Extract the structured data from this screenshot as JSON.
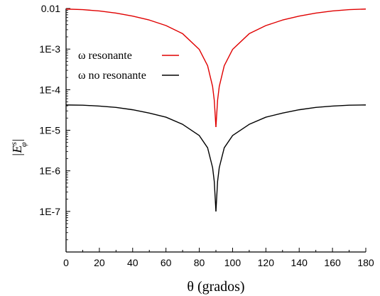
{
  "chart_data": {
    "type": "line",
    "xlabel": "θ (grados)",
    "ylabel": "|E",
    "ylabel_sup": "s",
    "ylabel_sub": "φ",
    "ylabel_close": "|",
    "y_scale": "log",
    "xlim": [
      0,
      180
    ],
    "ylim": [
      1e-08,
      0.01
    ],
    "x_ticks": [
      "0",
      "20",
      "40",
      "60",
      "80",
      "100",
      "120",
      "140",
      "160",
      "180"
    ],
    "y_ticks": [
      "0.01",
      "1E-3",
      "1E-4",
      "1E-5",
      "1E-6",
      "1E-7"
    ],
    "x_tick_values": [
      0,
      20,
      40,
      60,
      80,
      100,
      120,
      140,
      160,
      180
    ],
    "y_tick_values": [
      0.01,
      0.001,
      0.0001,
      1e-05,
      1e-06,
      1e-07
    ],
    "grid": false,
    "legend_position": "upper-left",
    "series": [
      {
        "name": "ω resonante",
        "color": "#e00000",
        "points": [
          [
            0,
            0.0097
          ],
          [
            10,
            0.0094
          ],
          [
            20,
            0.0087
          ],
          [
            30,
            0.0077
          ],
          [
            40,
            0.0065
          ],
          [
            50,
            0.0052
          ],
          [
            60,
            0.0038
          ],
          [
            70,
            0.0024
          ],
          [
            80,
            0.00098
          ],
          [
            85,
            0.00039
          ],
          [
            88,
            0.00012
          ],
          [
            89,
            5.5e-05
          ],
          [
            90,
            1.2e-05
          ],
          [
            91,
            5.5e-05
          ],
          [
            92,
            0.00012
          ],
          [
            95,
            0.00039
          ],
          [
            100,
            0.00098
          ],
          [
            110,
            0.0024
          ],
          [
            120,
            0.0038
          ],
          [
            130,
            0.0052
          ],
          [
            140,
            0.0065
          ],
          [
            150,
            0.0077
          ],
          [
            160,
            0.0087
          ],
          [
            170,
            0.0094
          ],
          [
            180,
            0.0097
          ]
        ]
      },
      {
        "name": "ω no resonante",
        "color": "#000000",
        "points": [
          [
            0,
            4.2e-05
          ],
          [
            10,
            4.15e-05
          ],
          [
            20,
            3.95e-05
          ],
          [
            30,
            3.65e-05
          ],
          [
            40,
            3.2e-05
          ],
          [
            50,
            2.65e-05
          ],
          [
            60,
            2.1e-05
          ],
          [
            70,
            1.4e-05
          ],
          [
            80,
            7.4e-06
          ],
          [
            85,
            3.7e-06
          ],
          [
            88,
            1.2e-06
          ],
          [
            89,
            5.5e-07
          ],
          [
            90,
            1e-07
          ],
          [
            91,
            5.5e-07
          ],
          [
            92,
            1.2e-06
          ],
          [
            95,
            3.7e-06
          ],
          [
            100,
            7.4e-06
          ],
          [
            110,
            1.4e-05
          ],
          [
            120,
            2.1e-05
          ],
          [
            130,
            2.65e-05
          ],
          [
            140,
            3.2e-05
          ],
          [
            150,
            3.65e-05
          ],
          [
            160,
            3.95e-05
          ],
          [
            170,
            4.15e-05
          ],
          [
            180,
            4.2e-05
          ]
        ]
      }
    ]
  }
}
